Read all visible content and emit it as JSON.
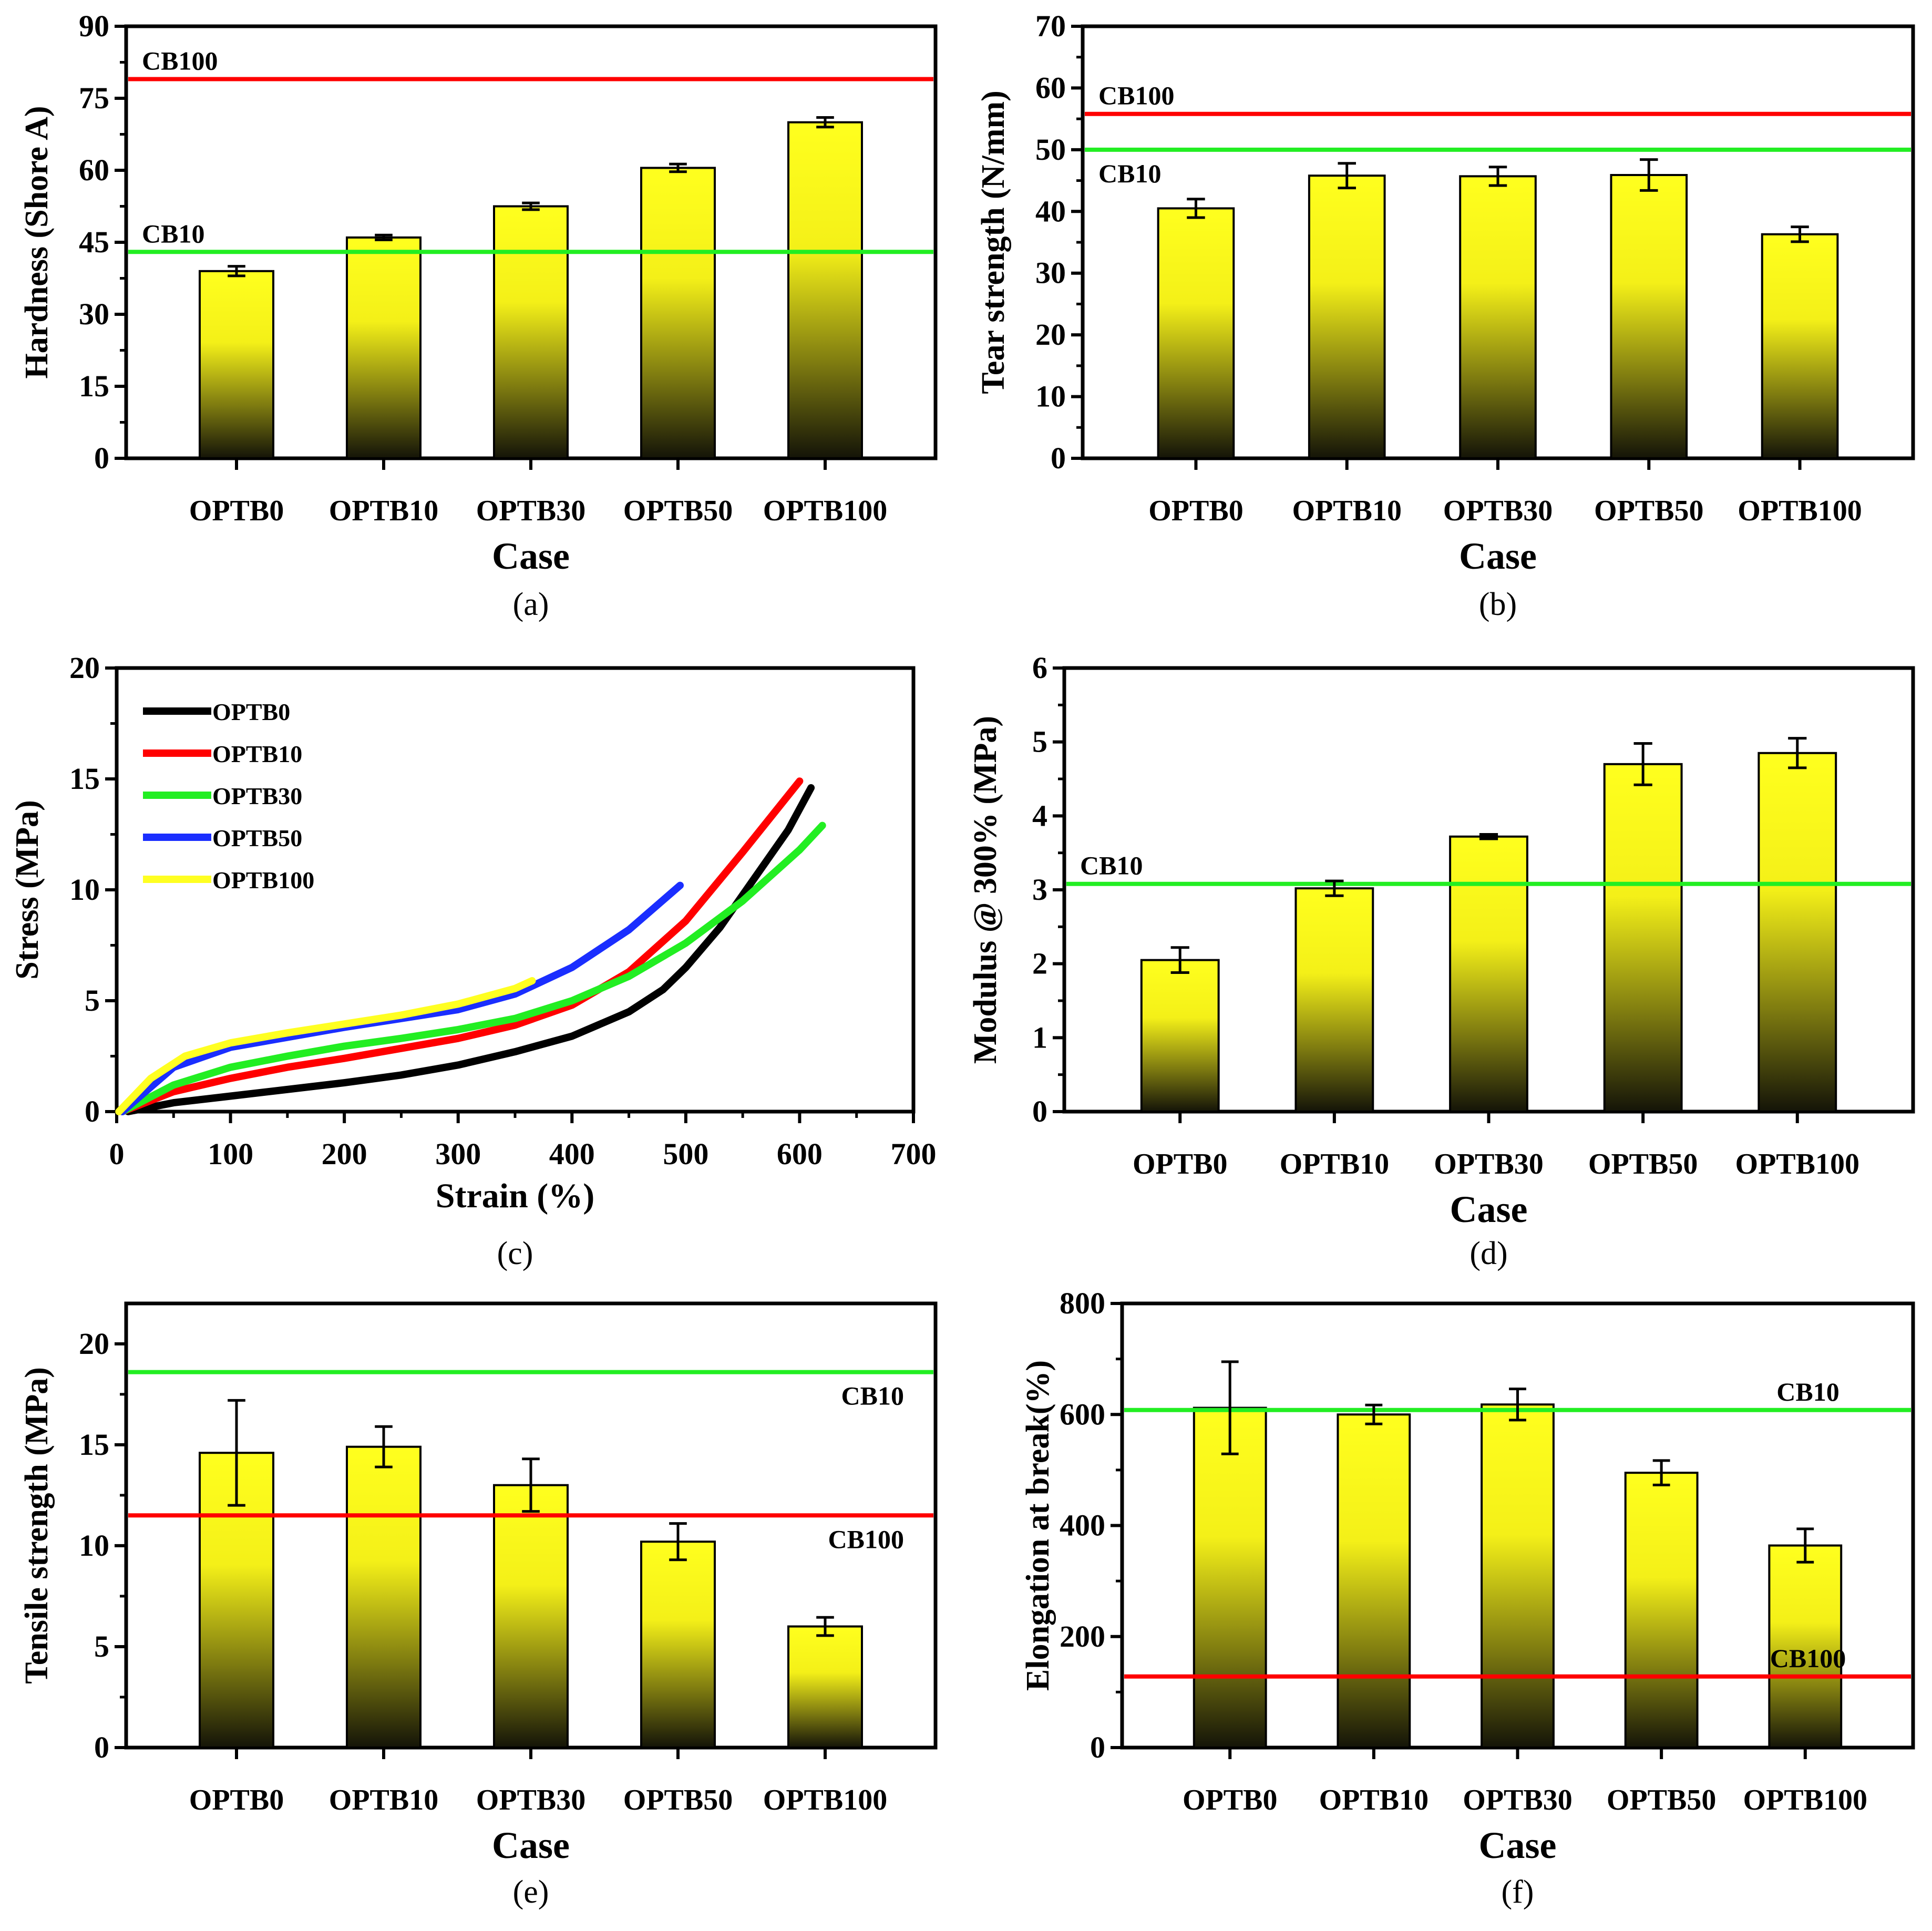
{
  "figure": {
    "description_labels": [
      "(a)",
      "(b)",
      "(c)",
      "(d)",
      "(e)",
      "(f)"
    ]
  },
  "chart_data": [
    {
      "id": "a",
      "type": "bar",
      "panel_label": "(a)",
      "xlabel": "Case",
      "ylabel": "Hardness (Shore A)",
      "categories": [
        "OPTB0",
        "OPTB10",
        "OPTB30",
        "OPTB50",
        "OPTB100"
      ],
      "values": [
        39,
        46,
        52.5,
        60.5,
        70
      ],
      "errors": [
        1,
        0.5,
        0.7,
        0.8,
        1
      ],
      "ylim": [
        0,
        90
      ],
      "yticks": [
        0,
        15,
        30,
        45,
        60,
        75,
        90
      ],
      "reference_lines": [
        {
          "label": "CB100",
          "value": 79,
          "color": "#ff0000",
          "label_position": "above-left"
        },
        {
          "label": "CB10",
          "value": 43,
          "color": "#22ee22",
          "label_position": "above-left"
        }
      ]
    },
    {
      "id": "b",
      "type": "bar",
      "panel_label": "(b)",
      "xlabel": "Case",
      "ylabel": "Tear strength (N/mm)",
      "categories": [
        "OPTB0",
        "OPTB10",
        "OPTB30",
        "OPTB50",
        "OPTB100"
      ],
      "values": [
        40.5,
        45.8,
        45.7,
        45.9,
        36.3
      ],
      "errors": [
        1.5,
        2,
        1.5,
        2.5,
        1.2
      ],
      "ylim": [
        0,
        70
      ],
      "yticks": [
        0,
        10,
        20,
        30,
        40,
        50,
        60,
        70
      ],
      "reference_lines": [
        {
          "label": "CB100",
          "value": 55.8,
          "color": "#ff0000",
          "label_position": "above-left"
        },
        {
          "label": "CB10",
          "value": 50,
          "color": "#22ee22",
          "label_position": "below-left"
        }
      ]
    },
    {
      "id": "c",
      "type": "line",
      "panel_label": "(c)",
      "xlabel": "Strain (%)",
      "ylabel": "Stress (MPa)",
      "xlim": [
        0,
        700
      ],
      "ylim": [
        0,
        20
      ],
      "xticks": [
        0,
        100,
        200,
        300,
        400,
        500,
        600,
        700
      ],
      "yticks": [
        0,
        5,
        10,
        15,
        20
      ],
      "legend_position": "top-left",
      "series": [
        {
          "name": "OPTB0",
          "color": "#000000",
          "x": [
            10,
            50,
            100,
            150,
            200,
            250,
            300,
            350,
            400,
            450,
            480,
            500,
            530,
            560,
            590,
            610
          ],
          "y": [
            0,
            0.4,
            0.7,
            1.0,
            1.3,
            1.65,
            2.1,
            2.7,
            3.4,
            4.5,
            5.5,
            6.5,
            8.3,
            10.5,
            12.7,
            14.6
          ]
        },
        {
          "name": "OPTB10",
          "color": "#ff0000",
          "x": [
            5,
            50,
            100,
            150,
            200,
            250,
            300,
            350,
            400,
            450,
            500,
            550,
            600
          ],
          "y": [
            0,
            0.9,
            1.5,
            2.0,
            2.4,
            2.85,
            3.3,
            3.9,
            4.8,
            6.3,
            8.6,
            11.7,
            14.9
          ]
        },
        {
          "name": "OPTB30",
          "color": "#22ee22",
          "x": [
            5,
            50,
            100,
            150,
            200,
            250,
            300,
            350,
            400,
            450,
            500,
            550,
            600,
            620
          ],
          "y": [
            0,
            1.2,
            2.0,
            2.5,
            2.95,
            3.3,
            3.7,
            4.2,
            5.0,
            6.1,
            7.6,
            9.5,
            11.8,
            12.9
          ]
        },
        {
          "name": "OPTB50",
          "color": "#1a2eff",
          "x": [
            5,
            50,
            100,
            150,
            200,
            250,
            300,
            350,
            400,
            450,
            495
          ],
          "y": [
            0,
            2.0,
            2.9,
            3.35,
            3.8,
            4.2,
            4.6,
            5.3,
            6.5,
            8.2,
            10.2
          ]
        },
        {
          "name": "OPTB100",
          "color": "#ffff22",
          "x": [
            2,
            30,
            60,
            100,
            150,
            200,
            250,
            300,
            350,
            365
          ],
          "y": [
            0,
            1.5,
            2.5,
            3.1,
            3.55,
            3.95,
            4.35,
            4.85,
            5.55,
            5.9
          ]
        }
      ]
    },
    {
      "id": "d",
      "type": "bar",
      "panel_label": "(d)",
      "xlabel": "Case",
      "ylabel": "Modulus @ 300% (MPa)",
      "categories": [
        "OPTB0",
        "OPTB10",
        "OPTB30",
        "OPTB50",
        "OPTB100"
      ],
      "values": [
        2.05,
        3.02,
        3.72,
        4.7,
        4.85
      ],
      "errors": [
        0.17,
        0.1,
        0.03,
        0.28,
        0.2
      ],
      "ylim": [
        0,
        6
      ],
      "yticks": [
        0,
        1,
        2,
        3,
        4,
        5,
        6
      ],
      "reference_lines": [
        {
          "label": "CB10",
          "value": 3.08,
          "color": "#22ee22",
          "label_position": "above-left"
        }
      ]
    },
    {
      "id": "e",
      "type": "bar",
      "panel_label": "(e)",
      "xlabel": "Case",
      "ylabel": "Tensile strength (MPa)",
      "categories": [
        "OPTB0",
        "OPTB10",
        "OPTB30",
        "OPTB50",
        "OPTB100"
      ],
      "values": [
        14.6,
        14.9,
        13.0,
        10.2,
        6.0
      ],
      "errors": [
        2.6,
        1.0,
        1.3,
        0.9,
        0.45
      ],
      "ylim": [
        0,
        22
      ],
      "yticks": [
        0,
        5,
        10,
        15,
        20
      ],
      "reference_lines": [
        {
          "label": "CB10",
          "value": 18.6,
          "color": "#22ee22",
          "label_position": "below-right"
        },
        {
          "label": "CB100",
          "value": 11.5,
          "color": "#ff0000",
          "label_position": "below-right"
        }
      ]
    },
    {
      "id": "f",
      "type": "bar",
      "panel_label": "(f)",
      "xlabel": "Case",
      "ylabel": "Elongation at break(%)",
      "categories": [
        "OPTB0",
        "OPTB10",
        "OPTB30",
        "OPTB50",
        "OPTB100"
      ],
      "values": [
        612,
        600,
        618,
        495,
        364
      ],
      "errors": [
        83,
        17,
        28,
        22,
        30
      ],
      "ylim": [
        0,
        800
      ],
      "yticks": [
        0,
        200,
        400,
        600,
        800
      ],
      "reference_lines": [
        {
          "label": "CB10",
          "value": 608,
          "color": "#22ee22",
          "label_position": "above-right"
        },
        {
          "label": "CB100",
          "value": 128,
          "color": "#ff0000",
          "label_position": "above-right"
        }
      ]
    }
  ]
}
